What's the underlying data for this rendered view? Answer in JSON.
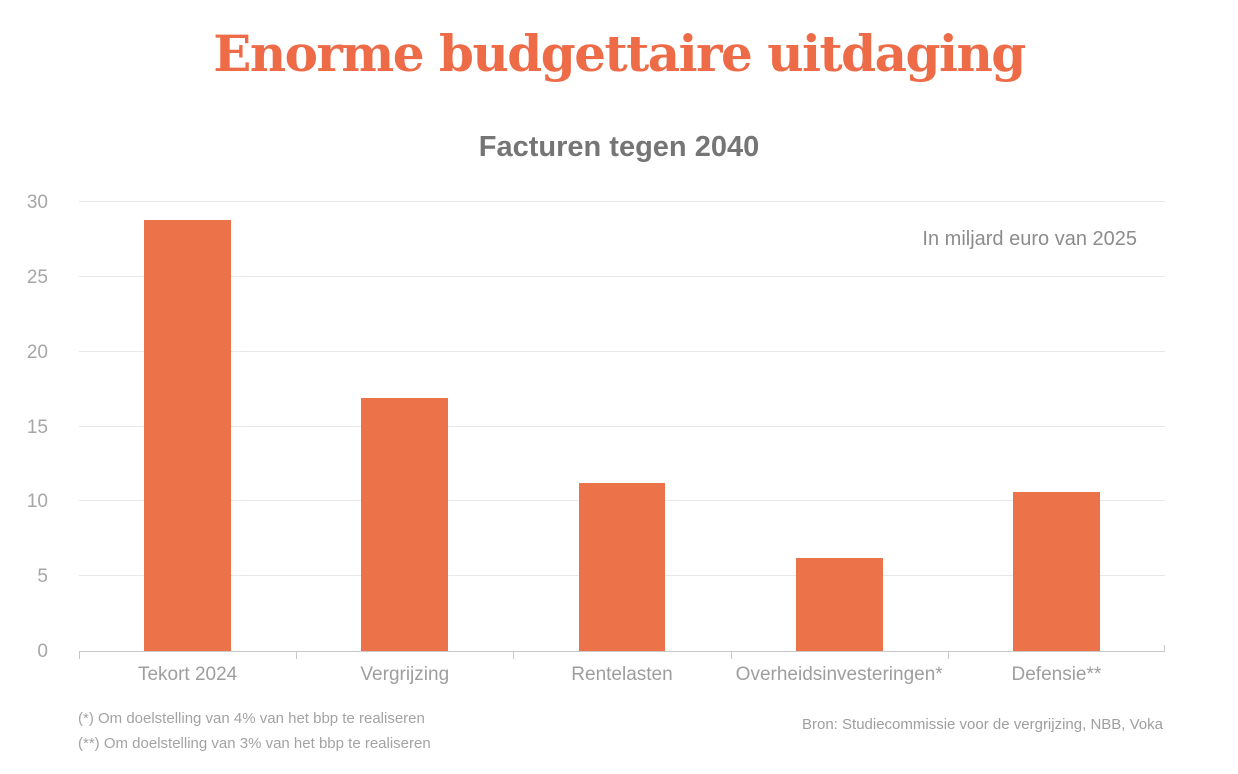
{
  "chart_data": {
    "type": "bar",
    "title": "Enorme budgettaire uitdaging",
    "subtitle": "Facturen tegen 2040",
    "unit_annotation": "In miljard euro van 2025",
    "categories": [
      "Tekort 2024",
      "Vergrijzing",
      "Rentelasten",
      "Overheidsinvesteringen*",
      "Defensie**"
    ],
    "values": [
      28.8,
      16.9,
      11.2,
      6.2,
      10.6
    ],
    "ylim": [
      0,
      30
    ],
    "yticks": [
      0,
      5,
      10,
      15,
      20,
      25,
      30
    ],
    "grid": "horizontal",
    "legend": "none",
    "bar_color": "#ec7249",
    "title_color": "#ed6b47",
    "footnotes": [
      "(*) Om doelstelling van 4% van het bbp te realiseren",
      "(**) Om doelstelling van 3% van het bbp te realiseren"
    ],
    "source": "Bron: Studiecommissie voor de vergrijzing, NBB, Voka"
  }
}
